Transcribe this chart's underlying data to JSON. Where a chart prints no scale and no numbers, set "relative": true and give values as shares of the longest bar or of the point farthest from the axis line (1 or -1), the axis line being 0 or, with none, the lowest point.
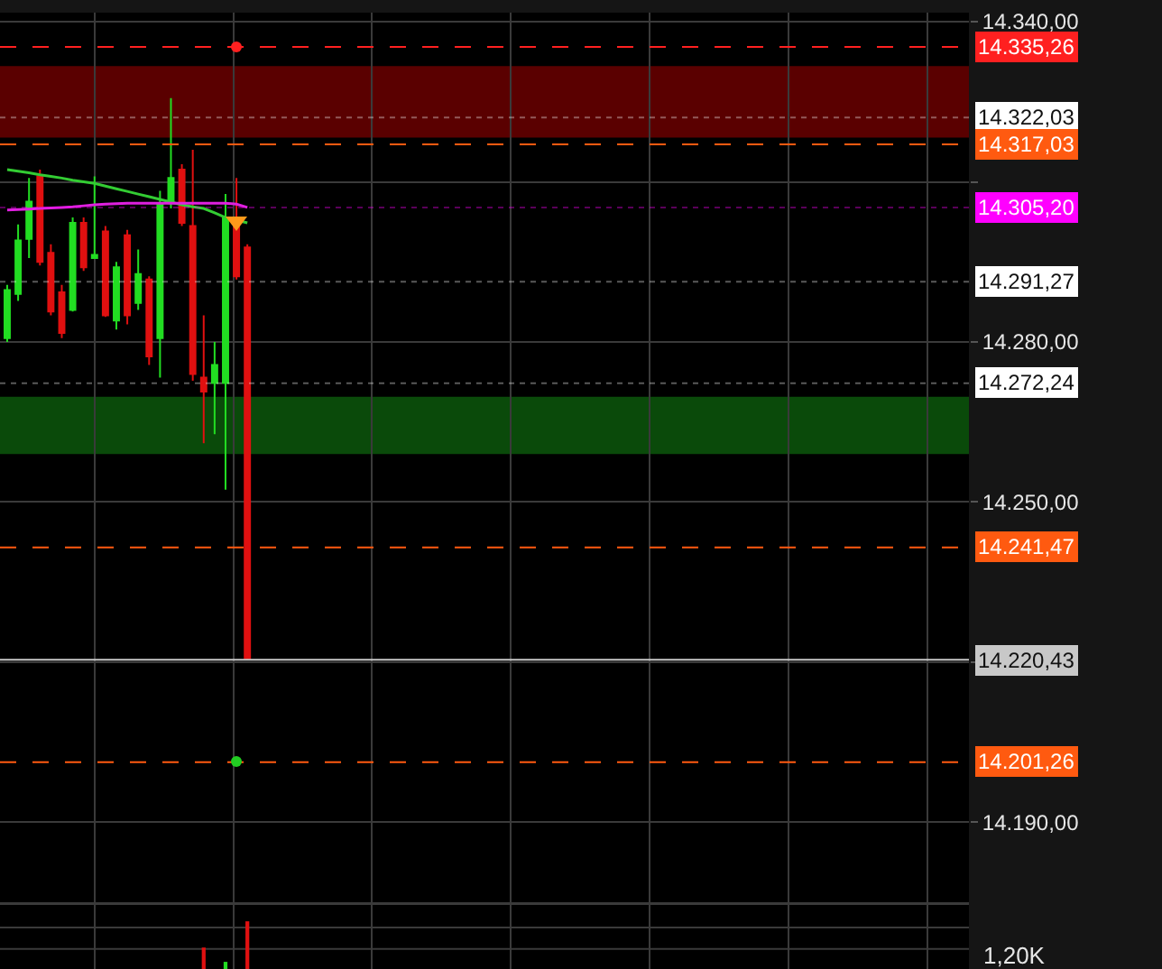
{
  "chart_data": [
    {
      "type": "candlestick",
      "categories": [
        null,
        null,
        null,
        null,
        null,
        null,
        null,
        null,
        null,
        null,
        null,
        null,
        null,
        null,
        null,
        null,
        null,
        null,
        null,
        null,
        null,
        null,
        null,
        null,
        null,
        null,
        null,
        null,
        null,
        null,
        null,
        null,
        null,
        null,
        null,
        null,
        null,
        null,
        null,
        null,
        null,
        null,
        null,
        null,
        null,
        null,
        null,
        null,
        null,
        null,
        null,
        null,
        null,
        null,
        null,
        null,
        null,
        null,
        null,
        null,
        null,
        null,
        null,
        null,
        null,
        null,
        null,
        null,
        null,
        null,
        null,
        null,
        null,
        null,
        null,
        null,
        null,
        null,
        null,
        null,
        null,
        null,
        null,
        null,
        null,
        null,
        null,
        null,
        null
      ],
      "ohlc": [
        [
          14280.7,
          14290.7,
          14280,
          14289.7
        ],
        [
          14289,
          14302,
          14287.7,
          14299
        ],
        [
          14299.3,
          14310.7,
          14295.7,
          14306.3
        ],
        [
          14311,
          14312.3,
          14294.3,
          14295
        ],
        [
          14296.7,
          14298.3,
          14285,
          14285.7
        ],
        [
          14289.3,
          14290.7,
          14280.7,
          14281.7
        ],
        [
          14286,
          14303.3,
          14285.7,
          14302.3
        ],
        [
          14302.3,
          14303.3,
          14293.3,
          14294
        ],
        [
          14295.7,
          14311,
          14295.7,
          14296.3
        ],
        [
          14300.7,
          14301.7,
          14284.7,
          14285
        ],
        [
          14284,
          14295,
          14282.3,
          14294
        ],
        [
          14300,
          14301,
          14283.3,
          14285
        ],
        [
          14287.3,
          14297.3,
          14286,
          14292.7
        ],
        [
          14291.7,
          14292.3,
          14275.7,
          14277.3
        ],
        [
          14280.7,
          14308.3,
          14273.3,
          14305.7
        ],
        [
          14306,
          14325.7,
          14305,
          14310.7
        ],
        [
          14312.3,
          14313.3,
          14301.7,
          14302.3
        ],
        [
          14301.7,
          14316,
          14272.7,
          14274
        ],
        [
          14273.3,
          14285,
          14261,
          14270.7
        ],
        [
          14272.3,
          14280,
          14262.7,
          14275.7
        ],
        [
          14272.3,
          14307.7,
          14252.3,
          14303.3
        ],
        [
          14302.3,
          14310.7,
          14291.7,
          14292.3
        ],
        [
          14297.7,
          14298.3,
          14220.43,
          14220.7
        ],
        null,
        null,
        null,
        null,
        null,
        null,
        null,
        null,
        null,
        null,
        null,
        null,
        null,
        null,
        null,
        null,
        null,
        null,
        null,
        null,
        null,
        null,
        null,
        null,
        null,
        null,
        null,
        null,
        null,
        null,
        null,
        null,
        null,
        null,
        null,
        null,
        null,
        null,
        null,
        null,
        null,
        null,
        null,
        null,
        null,
        null,
        null,
        null,
        null,
        null,
        null,
        null,
        null,
        null,
        null,
        null,
        null,
        null,
        null,
        null,
        null,
        null,
        null,
        null,
        null,
        null
      ],
      "series": [
        {
          "type": "line",
          "color": "#33cc33",
          "values": [
            14312.3,
            14312,
            14311.7,
            14311.3,
            14311,
            14310.7,
            14310.3,
            14310,
            14309.7,
            14309.2,
            14308.7,
            14308.2,
            14307.7,
            14307.2,
            14306.7,
            14306.2,
            14305.7,
            14305.3,
            14305,
            14304.2,
            14303.3,
            14302.8,
            14302.3,
            null,
            null,
            null,
            null,
            null,
            null,
            null,
            null,
            null,
            null,
            null,
            null,
            null,
            null,
            null,
            null,
            null,
            null,
            null,
            null,
            null,
            null,
            null,
            null,
            null,
            null,
            null,
            null,
            null,
            null,
            null,
            null,
            null,
            null,
            null,
            null,
            null,
            null,
            null,
            null,
            null,
            null,
            null,
            null,
            null,
            null,
            null,
            null,
            null,
            null,
            null,
            null,
            null,
            null,
            null,
            null,
            null,
            null,
            null,
            null,
            null,
            null,
            null,
            null,
            null,
            null
          ]
        },
        {
          "type": "line",
          "color": "#e020e0",
          "values": [
            14304.7,
            14304.8,
            14304.9,
            14305,
            14305.1,
            14305.2,
            14305.3,
            14305.5,
            14305.7,
            14305.8,
            14305.9,
            14306,
            14306,
            14306,
            14306,
            14306,
            14306,
            14306,
            14306,
            14306,
            14306,
            14305.8,
            14305.2,
            null,
            null,
            null,
            null,
            null,
            null,
            null,
            null,
            null,
            null,
            null,
            null,
            null,
            null,
            null,
            null,
            null,
            null,
            null,
            null,
            null,
            null,
            null,
            null,
            null,
            null,
            null,
            null,
            null,
            null,
            null,
            null,
            null,
            null,
            null,
            null,
            null,
            null,
            null,
            null,
            null,
            null,
            null,
            null,
            null,
            null,
            null,
            null,
            null,
            null,
            null,
            null,
            null,
            null,
            null,
            null,
            null,
            null,
            null,
            null,
            null,
            null,
            null,
            null,
            null,
            null
          ]
        }
      ],
      "ylim": [
        14175,
        14341.7
      ],
      "yticks": [
        {
          "value": 14340,
          "label": "14.340,00"
        },
        {
          "value": 14310,
          "label": null
        },
        {
          "value": 14280,
          "label": "14.280,00"
        },
        {
          "value": 14250,
          "label": "14.250,00"
        },
        {
          "value": 14220,
          "label": null
        },
        {
          "value": 14190,
          "label": "14.190,00"
        }
      ],
      "grid": true,
      "bands": [
        {
          "axis": "y",
          "from": 14318.3,
          "to": 14331.7,
          "color": "#5a0000"
        },
        {
          "axis": "y",
          "from": 14259,
          "to": 14269.7,
          "color": "#0a4a0a"
        }
      ],
      "ref_lines": [
        {
          "axis": "y",
          "value": 14335.26,
          "label": "14.335,26",
          "color": "#ff2020",
          "line_style": "dashed"
        },
        {
          "axis": "y",
          "value": 14322.03,
          "label": "14.322,03",
          "color": "#ffffff",
          "line_style": "dotted"
        },
        {
          "axis": "y",
          "value": 14305.2,
          "label": "14.305,20",
          "color": "#ff00ff",
          "line_style": "dotted"
        },
        {
          "axis": "y",
          "value": 14291.27,
          "label": "14.291,27",
          "color": "#ffffff",
          "line_style": "dotted"
        },
        {
          "axis": "y",
          "value": 14272.24,
          "label": "14.272,24",
          "color": "#ffffff",
          "line_style": "dotted"
        },
        {
          "axis": "y",
          "value": 14317.03,
          "label": "14.317,03",
          "color": "#ff5a10",
          "line_style": "dashed"
        },
        {
          "axis": "y",
          "value": 14241.47,
          "label": "14.241,47",
          "color": "#ff5a10",
          "line_style": "dashed"
        },
        {
          "axis": "y",
          "value": 14220.43,
          "label": "14.220,43",
          "color": "#c8c8c8",
          "line_style": "solid"
        },
        {
          "axis": "y",
          "value": 14201.26,
          "label": "14.201,26",
          "color": "#ff5a10",
          "line_style": "dashed"
        }
      ]
    },
    {
      "type": "bar",
      "relative": true,
      "categories": [
        null,
        null,
        null,
        null,
        null,
        null,
        null,
        null,
        null,
        null,
        null,
        null,
        null,
        null,
        null,
        null,
        null,
        null,
        null,
        null,
        null,
        null,
        null,
        null,
        null,
        null,
        null,
        null,
        null,
        null,
        null,
        null,
        null,
        null,
        null,
        null,
        null,
        null,
        null,
        null,
        null,
        null,
        null,
        null,
        null,
        null,
        null,
        null,
        null,
        null,
        null,
        null,
        null,
        null,
        null,
        null,
        null,
        null,
        null,
        null,
        null,
        null,
        null,
        null,
        null,
        null,
        null,
        null,
        null,
        null,
        null,
        null,
        null,
        null,
        null,
        null,
        null,
        null,
        null,
        null,
        null,
        null,
        null,
        null,
        null,
        null,
        null,
        null,
        null
      ],
      "values": [
        null,
        null,
        null,
        null,
        null,
        null,
        null,
        null,
        null,
        null,
        null,
        null,
        null,
        null,
        null,
        null,
        null,
        null,
        0.45,
        null,
        0.15,
        null,
        1,
        null,
        null,
        null,
        null,
        null,
        null,
        null,
        null,
        null,
        null,
        null,
        null,
        null,
        null,
        null,
        null,
        null,
        null,
        null,
        null,
        null,
        null,
        null,
        null,
        null,
        null,
        null,
        null,
        null,
        null,
        null,
        null,
        null,
        null,
        null,
        null,
        null,
        null,
        null,
        null,
        null,
        null,
        null,
        null,
        null,
        null,
        null,
        null,
        null,
        null,
        null,
        null,
        null,
        null,
        null,
        null,
        null,
        null,
        null,
        null,
        null,
        null,
        null,
        null,
        null,
        null
      ],
      "grid": true,
      "colors": [
        null,
        null,
        null,
        null,
        null,
        null,
        null,
        null,
        null,
        null,
        null,
        null,
        null,
        null,
        null,
        null,
        null,
        null,
        "#e01010",
        null,
        "#22dd22",
        null,
        "#e01010",
        null,
        null,
        null,
        null,
        null,
        null,
        null,
        null,
        null,
        null,
        null,
        null,
        null,
        null,
        null,
        null,
        null,
        null,
        null,
        null,
        null,
        null,
        null,
        null,
        null,
        null,
        null,
        null,
        null,
        null,
        null,
        null,
        null,
        null,
        null,
        null,
        null,
        null,
        null,
        null,
        null,
        null,
        null,
        null,
        null,
        null,
        null,
        null,
        null,
        null,
        null,
        null,
        null,
        null,
        null,
        null,
        null,
        null,
        null,
        null,
        null,
        null,
        null,
        null,
        null,
        null
      ],
      "annotations": [
        "1,20K"
      ]
    }
  ]
}
